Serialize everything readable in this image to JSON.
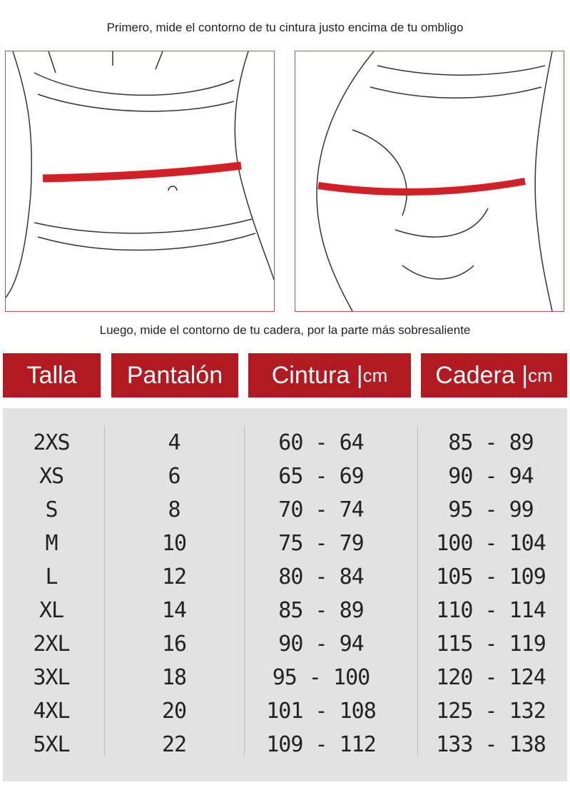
{
  "captions": {
    "top": "Primero, mide el contorno de tu cintura justo encima de tu ombligo",
    "bottom": "Luego, mide el contorno de tu cadera, por la parte más sobresaliente"
  },
  "table": {
    "headers": [
      {
        "text": "Talla"
      },
      {
        "text": "Pantalón"
      },
      {
        "text": "Cintura |",
        "unit": "cm"
      },
      {
        "text": "Cadera |",
        "unit": "cm"
      }
    ],
    "rows": [
      [
        "2XS",
        "4",
        "60 - 64",
        "85 - 89"
      ],
      [
        "XS",
        "6",
        "65 - 69",
        "90 - 94"
      ],
      [
        "S",
        "8",
        "70 - 74",
        "95 - 99"
      ],
      [
        "M",
        "10",
        "75 - 79",
        "100 - 104"
      ],
      [
        "L",
        "12",
        "80 - 84",
        "105 - 109"
      ],
      [
        "XL",
        "14",
        "85 - 89",
        "110 - 114"
      ],
      [
        "2XL",
        "16",
        "90 - 94",
        "115 - 119"
      ],
      [
        "3XL",
        "18",
        "95 - 100",
        "120 - 124"
      ],
      [
        "4XL",
        "20",
        "101 - 108",
        "125 - 132"
      ],
      [
        "5XL",
        "22",
        "109 - 112",
        "133 - 138"
      ]
    ]
  }
}
